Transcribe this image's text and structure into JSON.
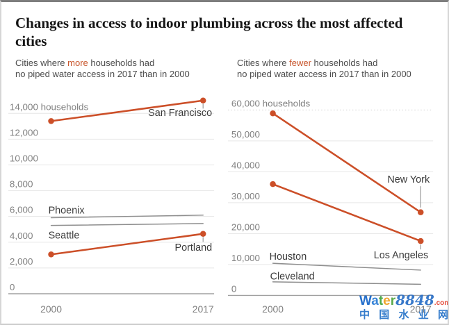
{
  "title": "Changes in access to indoor plumbing across the most affected cities",
  "colors": {
    "accent_orange": "#cc4f28",
    "context_gray": "#8e8e8e",
    "highlight_word": "#c8552b",
    "gridline": "#e6e6e6",
    "axis_line": "#a0a0a0",
    "tick_label": "#808080",
    "city_label": "#3a3a3a",
    "leader_line": "#9a9a9a",
    "title_color": "#151515",
    "subtitle_color": "#4c4c4c"
  },
  "chart_data": [
    {
      "type": "line",
      "id": "more-households",
      "subtitle_parts": {
        "prefix": "Cities where ",
        "highlight": "more",
        "suffix": " households had",
        "line2": "no piped water access in 2017 than in 2000"
      },
      "x_categories": [
        "2000",
        "2017"
      ],
      "series": [
        {
          "name": "San Francisco",
          "values": [
            13400,
            15000
          ],
          "emphasis": true
        },
        {
          "name": "Phoenix",
          "values": [
            5900,
            6100
          ],
          "emphasis": false
        },
        {
          "name": "Seattle",
          "values": [
            5300,
            5450
          ],
          "emphasis": false
        },
        {
          "name": "Portland",
          "values": [
            3050,
            4650
          ],
          "emphasis": true
        }
      ],
      "ylim": [
        0,
        14000
      ],
      "ytick_step": 2000,
      "ytick_labels": [
        "0",
        "2,000",
        "4,000",
        "6,000",
        "8,000",
        "10,000",
        "12,000",
        "14,000 households"
      ],
      "grid": true,
      "legend": "inline-labels"
    },
    {
      "type": "line",
      "id": "fewer-households",
      "subtitle_parts": {
        "prefix": "Cities where ",
        "highlight": "fewer",
        "suffix": " households had",
        "line2": "no piped water access in 2017 than in 2000"
      },
      "x_categories": [
        "2000",
        "2017"
      ],
      "series": [
        {
          "name": "New York",
          "values": [
            58900,
            26900
          ],
          "emphasis": true
        },
        {
          "name": "Los Angeles",
          "values": [
            36000,
            17600
          ],
          "emphasis": true
        },
        {
          "name": "Houston",
          "values": [
            10400,
            8200
          ],
          "emphasis": false
        },
        {
          "name": "Cleveland",
          "values": [
            4400,
            3600
          ],
          "emphasis": false
        }
      ],
      "ylim": [
        0,
        60000
      ],
      "ytick_step": 10000,
      "ytick_labels": [
        "0",
        "10,000",
        "20,000",
        "30,000",
        "40,000",
        "50,000",
        "60,000 households"
      ],
      "grid": true,
      "legend": "inline-labels"
    }
  ],
  "watermark": {
    "brand_letters": [
      {
        "ch": "W",
        "color": "#1565c8"
      },
      {
        "ch": "a",
        "color": "#2a7bd4"
      },
      {
        "ch": "t",
        "color": "#3fa33c"
      },
      {
        "ch": "e",
        "color": "#f09f1f"
      },
      {
        "ch": "r",
        "color": "#4da33c"
      }
    ],
    "digits": "8848",
    "digits_color": "#2a6fc6",
    "tld": ".com",
    "tld_color": "#e23b28",
    "cjk_chars": [
      "中",
      "国",
      "水",
      "业",
      "网"
    ],
    "cjk_color": "#2472c8"
  }
}
